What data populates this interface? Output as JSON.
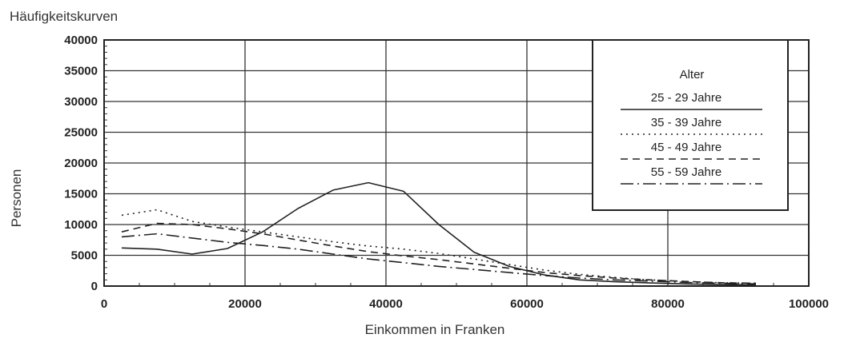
{
  "chart_data": {
    "type": "line",
    "title": "Häufigkeitskurven",
    "xlabel": "Einkommen in Franken",
    "ylabel": "Personen",
    "xlim": [
      0,
      100000
    ],
    "ylim": [
      0,
      40000
    ],
    "x_ticks": [
      0,
      20000,
      40000,
      60000,
      80000,
      100000
    ],
    "x_tick_labels": [
      "0",
      "20000",
      "40000",
      "60000",
      "80000",
      "100000"
    ],
    "y_ticks": [
      0,
      5000,
      10000,
      15000,
      20000,
      25000,
      30000,
      35000,
      40000
    ],
    "y_tick_labels": [
      "0",
      "5000",
      "10000",
      "15000",
      "20000",
      "25000",
      "30000",
      "35000",
      "40000"
    ],
    "grid": true,
    "legend_position": "top-right",
    "legend_title": "Alter",
    "series": [
      {
        "name": "25 - 29 Jahre",
        "style": "solid",
        "points": [
          [
            2500,
            6200
          ],
          [
            7500,
            6000
          ],
          [
            12500,
            5200
          ],
          [
            17500,
            6100
          ],
          [
            22500,
            8800
          ],
          [
            27500,
            12600
          ],
          [
            32500,
            15600
          ],
          [
            37500,
            16800
          ],
          [
            42500,
            15400
          ],
          [
            47500,
            10000
          ],
          [
            52500,
            5500
          ],
          [
            57500,
            3200
          ],
          [
            62500,
            1800
          ],
          [
            67500,
            1000
          ],
          [
            72500,
            700
          ],
          [
            77500,
            500
          ],
          [
            82500,
            350
          ],
          [
            87500,
            250
          ],
          [
            92500,
            200
          ]
        ]
      },
      {
        "name": "35 - 39 Jahre",
        "style": "dotted",
        "points": [
          [
            2500,
            11500
          ],
          [
            7500,
            12400
          ],
          [
            12500,
            10500
          ],
          [
            17500,
            9600
          ],
          [
            22500,
            8800
          ],
          [
            27500,
            8000
          ],
          [
            32500,
            7200
          ],
          [
            37500,
            6500
          ],
          [
            42500,
            6000
          ],
          [
            47500,
            5300
          ],
          [
            52500,
            4400
          ],
          [
            57500,
            3500
          ],
          [
            62500,
            2600
          ],
          [
            67500,
            1900
          ],
          [
            72500,
            1400
          ],
          [
            77500,
            1000
          ],
          [
            82500,
            750
          ],
          [
            87500,
            550
          ],
          [
            92500,
            450
          ]
        ]
      },
      {
        "name": "45 - 49 Jahre",
        "style": "dashed",
        "points": [
          [
            2500,
            8800
          ],
          [
            7500,
            10200
          ],
          [
            12500,
            10000
          ],
          [
            17500,
            9300
          ],
          [
            22500,
            8500
          ],
          [
            27500,
            7500
          ],
          [
            32500,
            6500
          ],
          [
            37500,
            5600
          ],
          [
            42500,
            4900
          ],
          [
            47500,
            4300
          ],
          [
            52500,
            3600
          ],
          [
            57500,
            2900
          ],
          [
            62500,
            2200
          ],
          [
            67500,
            1700
          ],
          [
            72500,
            1300
          ],
          [
            77500,
            1000
          ],
          [
            82500,
            750
          ],
          [
            87500,
            550
          ],
          [
            92500,
            450
          ]
        ]
      },
      {
        "name": "55 - 59 Jahre",
        "style": "dashdot",
        "points": [
          [
            2500,
            8000
          ],
          [
            7500,
            8500
          ],
          [
            12500,
            7800
          ],
          [
            17500,
            7100
          ],
          [
            22500,
            6600
          ],
          [
            27500,
            6000
          ],
          [
            32500,
            5200
          ],
          [
            37500,
            4400
          ],
          [
            42500,
            3800
          ],
          [
            47500,
            3200
          ],
          [
            52500,
            2700
          ],
          [
            57500,
            2200
          ],
          [
            62500,
            1700
          ],
          [
            67500,
            1300
          ],
          [
            72500,
            1000
          ],
          [
            77500,
            800
          ],
          [
            82500,
            600
          ],
          [
            87500,
            450
          ],
          [
            92500,
            350
          ]
        ]
      }
    ]
  }
}
